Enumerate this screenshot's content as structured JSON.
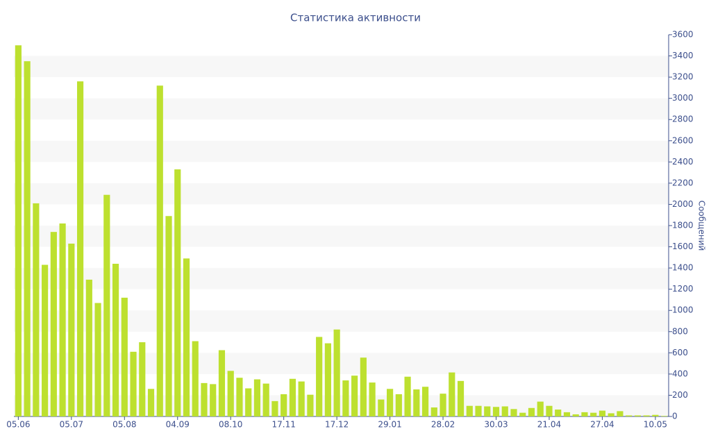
{
  "chart_data": {
    "type": "bar",
    "title": "Статистика активности",
    "y_label": "Сообщений",
    "categories": [
      "05.06",
      null,
      null,
      null,
      null,
      null,
      "05.07",
      null,
      null,
      null,
      null,
      null,
      "05.08",
      null,
      null,
      null,
      null,
      null,
      "04.09",
      null,
      null,
      null,
      null,
      null,
      "08.10",
      null,
      null,
      null,
      null,
      null,
      "17.11",
      null,
      null,
      null,
      null,
      null,
      "17.12",
      null,
      null,
      null,
      null,
      null,
      "29.01",
      null,
      null,
      null,
      null,
      null,
      "28.02",
      null,
      null,
      null,
      null,
      null,
      "30.03",
      null,
      null,
      null,
      null,
      null,
      "21.04",
      null,
      null,
      null,
      null,
      null,
      "27.04",
      null,
      null,
      null,
      null,
      null,
      "10.05",
      null
    ],
    "values": [
      3500,
      3350,
      2010,
      1430,
      1740,
      1820,
      1630,
      3160,
      1290,
      1070,
      2090,
      1440,
      1120,
      610,
      700,
      260,
      3120,
      1890,
      2330,
      1490,
      710,
      315,
      305,
      625,
      430,
      365,
      265,
      350,
      310,
      145,
      210,
      355,
      330,
      205,
      750,
      690,
      820,
      340,
      385,
      555,
      320,
      160,
      260,
      210,
      375,
      255,
      280,
      85,
      215,
      415,
      335,
      100,
      100,
      95,
      90,
      95,
      70,
      35,
      80,
      140,
      100,
      65,
      40,
      20,
      40,
      35,
      55,
      30,
      50,
      10,
      10,
      10,
      15,
      5
    ],
    "color": "#bde02f",
    "ylim": [
      0,
      3600
    ],
    "yticks": [
      0,
      200,
      400,
      600,
      800,
      1000,
      1200,
      1400,
      1600,
      1800,
      2000,
      2200,
      2400,
      2600,
      2800,
      3000,
      3200,
      3400,
      3600
    ],
    "y_axis_side": "right",
    "banded_background": true
  }
}
